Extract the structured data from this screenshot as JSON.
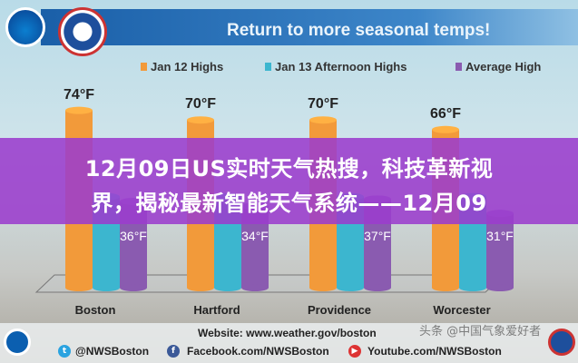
{
  "graphic": {
    "title": "Return to more seasonal temps!",
    "logos": {
      "left": "NOAA",
      "right": "NATIONAL WEATHER SERVICE"
    }
  },
  "chart_data": {
    "type": "bar",
    "title": "Return to more seasonal temps!",
    "categories": [
      "Boston",
      "Hartford",
      "Providence",
      "Worcester"
    ],
    "series": [
      {
        "name": "Jan 12 Highs",
        "color": "#f29a3a",
        "values": [
          74,
          70,
          70,
          66
        ],
        "labels": [
          "74°F",
          "70°F",
          "70°F",
          "66°F"
        ]
      },
      {
        "name": "Jan 13 Afternoon Highs",
        "color": "#3cb6cf",
        "values": [
          null,
          null,
          null,
          null
        ]
      },
      {
        "name": "Average High",
        "color": "#8a5bb0",
        "values": [
          36,
          34,
          37,
          31
        ],
        "labels": [
          "36°F",
          "34°F",
          "37°F",
          "31°F"
        ]
      }
    ],
    "legend": "top",
    "unit": "°F"
  },
  "overlay": {
    "line1": "12月09日US实时天气热搜，科技革新视",
    "line2": "界，揭秘最新智能天气系统——12月09"
  },
  "footer": {
    "website": "Website: www.weather.gov/boston",
    "twitter": "@NWSBoston",
    "facebook": "Facebook.com/NWSBoston",
    "youtube": "Youtube.com/NWSBoston"
  },
  "watermark": "头条 @中国气象爱好者"
}
